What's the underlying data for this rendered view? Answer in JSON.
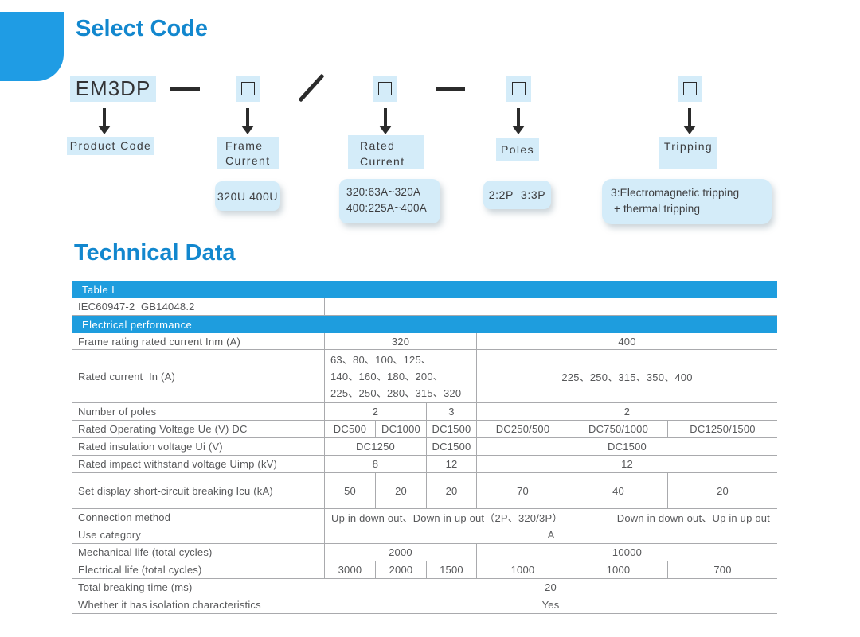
{
  "colors": {
    "heading_blue": "#1287ce",
    "bar_blue": "#1e9dde",
    "chip_blue": "#d4ecf9"
  },
  "select_code": {
    "heading": "Select Code",
    "product_code": "EM3DP",
    "labels": {
      "product": "Product Code",
      "frame": "Frame\nCurrent",
      "rated": "Rated\nCurrent",
      "poles": "Poles",
      "tripping": "Tripping"
    },
    "values": {
      "frame": "320U 400U",
      "rated": "320:63A~320A\n400:225A~400A",
      "poles": "2:2P  3:3P",
      "tripping": "3:Electromagnetic tripping\n + thermal tripping"
    }
  },
  "technical_data": {
    "heading": "Technical Data",
    "table_title": "Table I",
    "standard": "IEC60947-2  GB14048.2",
    "section": "Electrical performance",
    "rows": {
      "frame_rating": {
        "label": "Frame rating rated current Inm (A)",
        "cells": [
          "320",
          "400"
        ]
      },
      "rated_current": {
        "label": "Rated current  In (A)",
        "left": "63、80、100、125、\n140、160、180、200、\n225、250、280、315、320",
        "right": "225、250、315、350、400"
      },
      "poles": {
        "label": "Number of poles",
        "cells": [
          "2",
          "3",
          "2"
        ]
      },
      "ue": {
        "label": "Rated Operating Voltage Ue (V) DC",
        "cells": [
          "DC500",
          "DC1000",
          "DC1500",
          "DC250/500",
          "DC750/1000",
          "DC1250/1500"
        ]
      },
      "ui": {
        "label": "Rated insulation voltage Ui (V)",
        "cells": [
          "DC1250",
          "DC1500",
          "DC1500"
        ]
      },
      "uimp": {
        "label": "Rated impact withstand voltage Uimp (kV)",
        "cells": [
          "8",
          "12",
          "12"
        ]
      },
      "icu": {
        "label": "Set display short-circuit breaking Icu (kA)",
        "cells": [
          "50",
          "20",
          "20",
          "70",
          "40",
          "20"
        ]
      },
      "connection": {
        "label": "Connection method",
        "left": "Up in down out、Down in up out（2P、320/3P）",
        "right": "Down in down out、Up in up out"
      },
      "use_category": {
        "label": "Use category",
        "value": "A"
      },
      "mech_life": {
        "label": "Mechanical life (total cycles)",
        "cells": [
          "2000",
          "10000"
        ]
      },
      "elec_life": {
        "label": "Electrical life (total cycles)",
        "cells": [
          "3000",
          "2000",
          "1500",
          "1000",
          "1000",
          "700"
        ]
      },
      "breaking_time": {
        "label": "Total breaking time (ms)",
        "value": "20"
      },
      "isolation": {
        "label": "Whether it has isolation characteristics",
        "value": "Yes"
      }
    }
  }
}
